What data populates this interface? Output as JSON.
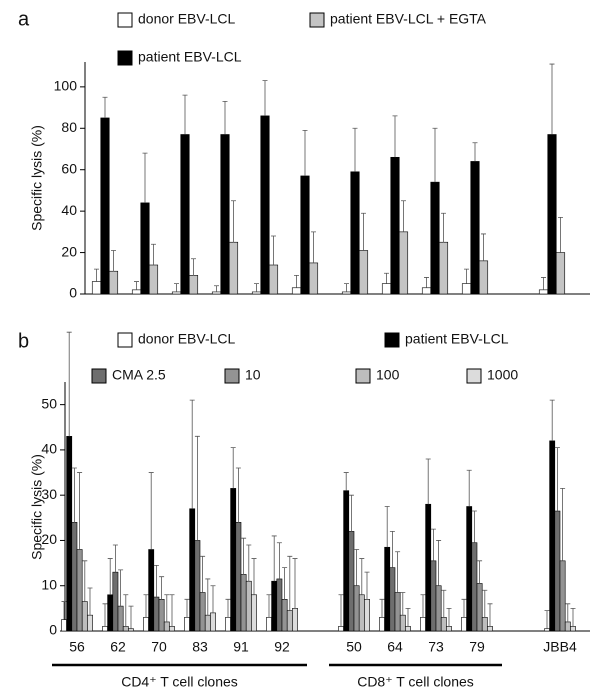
{
  "chart_data": [
    {
      "type": "bar",
      "panel_label": "a",
      "ylabel": "Specific lysis (%)",
      "categories": [
        null,
        null,
        null,
        null,
        null,
        null,
        null,
        null,
        null,
        null,
        null
      ],
      "ylim": [
        0,
        112
      ],
      "yticks": [
        0,
        20,
        40,
        60,
        80,
        100
      ],
      "series": [
        {
          "name": "donor EBV-LCL",
          "color": "#ffffff",
          "values": [
            6,
            2,
            1,
            1,
            1,
            3,
            1,
            5,
            3,
            5,
            2
          ],
          "errors": [
            6,
            4,
            4,
            3,
            4,
            6,
            4,
            5,
            5,
            7,
            6
          ]
        },
        {
          "name": "patient EBV-LCL",
          "color": "#000000",
          "values": [
            85,
            44,
            77,
            77,
            86,
            57,
            59,
            66,
            54,
            64,
            77
          ],
          "errors": [
            10,
            24,
            19,
            16,
            17,
            22,
            21,
            20,
            26,
            9,
            34
          ]
        },
        {
          "name": "patient EBV-LCL + EGTA",
          "color": "#c4c4c4",
          "values": [
            11,
            14,
            9,
            25,
            14,
            15,
            21,
            30,
            25,
            16,
            20
          ],
          "errors": [
            10,
            10,
            8,
            20,
            14,
            15,
            18,
            15,
            14,
            13,
            17
          ]
        }
      ]
    },
    {
      "type": "bar",
      "panel_label": "b",
      "ylabel": "Specific lysis (%)",
      "categories": [
        "56",
        "62",
        "70",
        "83",
        "91",
        "92",
        "50",
        "64",
        "73",
        "79",
        "JBB4"
      ],
      "ylim": [
        0,
        55
      ],
      "yticks": [
        0,
        10,
        20,
        30,
        40,
        50
      ],
      "annotations": [
        "CD4⁺ T cell clones",
        "CD8⁺ T cell clones"
      ],
      "series": [
        {
          "name": "donor EBV-LCL",
          "color": "#ffffff",
          "values": [
            2.5,
            1,
            3,
            3,
            3,
            3,
            1,
            3,
            3,
            3,
            0.5
          ],
          "errors": [
            4,
            5,
            5,
            4,
            4,
            5,
            7,
            4,
            5,
            4,
            4
          ]
        },
        {
          "name": "patient EBV-LCL",
          "color": "#000000",
          "values": [
            43,
            8,
            18,
            27,
            31.5,
            11,
            31,
            18.5,
            28,
            27.5,
            42
          ],
          "errors": [
            23,
            8,
            17,
            24,
            9,
            10,
            4,
            9,
            10,
            8,
            9
          ]
        },
        {
          "name": "CMA 2.5",
          "color": "#6e6e6e",
          "values": [
            24,
            13,
            7.5,
            20,
            24,
            11.5,
            22,
            14,
            15.5,
            19.5,
            26.5
          ],
          "errors": [
            12,
            6,
            7,
            23,
            12,
            8,
            8,
            8,
            7,
            7,
            14
          ]
        },
        {
          "name": "10",
          "color": "#939393",
          "values": [
            18,
            5.5,
            7,
            8.5,
            12.5,
            7,
            10,
            8.5,
            10,
            10.5,
            15.5
          ],
          "errors": [
            17,
            8,
            5,
            8,
            8,
            7,
            8,
            9,
            10,
            5,
            16
          ]
        },
        {
          "name": "100",
          "color": "#bdbdbd",
          "values": [
            6.5,
            1,
            2,
            3.5,
            11,
            4.5,
            8,
            3.5,
            3,
            3,
            2
          ],
          "errors": [
            9,
            7,
            6,
            8,
            8,
            12,
            8,
            5,
            6,
            6,
            4
          ]
        },
        {
          "name": "1000",
          "color": "#dcdcdc",
          "values": [
            3.5,
            0.5,
            1,
            4,
            8,
            5,
            7,
            1,
            1,
            1,
            1
          ],
          "errors": [
            6,
            5,
            7,
            6,
            8,
            11,
            6,
            4,
            4,
            5,
            4
          ]
        }
      ]
    }
  ]
}
